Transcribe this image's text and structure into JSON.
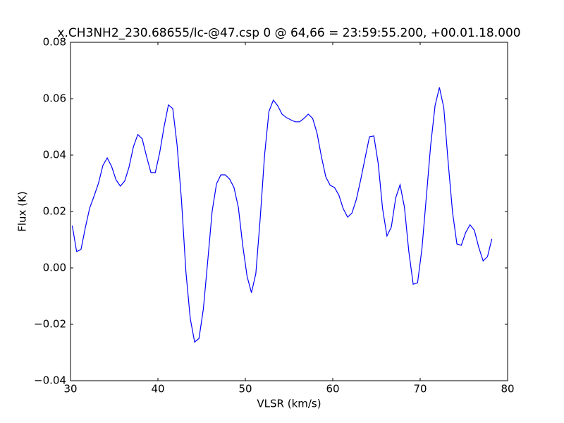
{
  "chart_data": {
    "type": "line",
    "title": "x.CH3NH2_230.68655/lc-@47.csp 0 @ 64,66 = 23:59:55.200, +00.01.18.000",
    "x_label": "VLSR (km/s)",
    "y_label": "Flux (K)",
    "x": [
      30.2,
      30.7,
      31.2,
      31.7,
      32.2,
      32.7,
      33.2,
      33.7,
      34.2,
      34.7,
      35.2,
      35.7,
      36.2,
      36.7,
      37.2,
      37.7,
      38.2,
      38.7,
      39.2,
      39.7,
      40.2,
      40.7,
      41.2,
      41.7,
      42.2,
      42.7,
      43.2,
      43.7,
      44.2,
      44.7,
      45.2,
      45.7,
      46.2,
      46.7,
      47.2,
      47.7,
      48.2,
      48.7,
      49.2,
      49.7,
      50.2,
      50.7,
      51.2,
      51.7,
      52.2,
      52.7,
      53.2,
      53.7,
      54.2,
      54.7,
      55.2,
      55.7,
      56.2,
      56.7,
      57.2,
      57.7,
      58.2,
      58.7,
      59.2,
      59.7,
      60.2,
      60.7,
      61.2,
      61.7,
      62.2,
      62.7,
      63.2,
      63.7,
      64.2,
      64.7,
      65.2,
      65.7,
      66.2,
      66.7,
      67.2,
      67.7,
      68.2,
      68.7,
      69.2,
      69.7,
      70.2,
      70.7,
      71.2,
      71.7,
      72.2,
      72.7,
      73.2,
      73.7,
      74.2,
      74.7,
      75.2,
      75.7,
      76.2,
      76.7,
      77.2,
      77.7,
      78.2
    ],
    "series": [
      {
        "color": "#0000ff",
        "values": [
          0.015,
          0.0058,
          0.0065,
          0.0143,
          0.0213,
          0.0255,
          0.03,
          0.0363,
          0.039,
          0.036,
          0.0313,
          0.029,
          0.0308,
          0.0358,
          0.043,
          0.0473,
          0.0458,
          0.0395,
          0.0338,
          0.0338,
          0.0408,
          0.05,
          0.0578,
          0.0565,
          0.0433,
          0.0238,
          -0.0013,
          -0.018,
          -0.0263,
          -0.025,
          -0.0145,
          0.0025,
          0.02,
          0.0298,
          0.033,
          0.033,
          0.0315,
          0.0285,
          0.0215,
          0.008,
          -0.003,
          -0.0088,
          -0.002,
          0.0175,
          0.04,
          0.0555,
          0.0595,
          0.0575,
          0.0545,
          0.0533,
          0.0525,
          0.0518,
          0.0518,
          0.053,
          0.0545,
          0.053,
          0.0478,
          0.0395,
          0.0323,
          0.0293,
          0.0285,
          0.0258,
          0.021,
          0.018,
          0.0195,
          0.0243,
          0.0313,
          0.039,
          0.0465,
          0.0468,
          0.037,
          0.021,
          0.0113,
          0.0145,
          0.0248,
          0.0295,
          0.0215,
          0.0058,
          -0.0058,
          -0.0053,
          0.0068,
          0.025,
          0.0435,
          0.0575,
          0.064,
          0.0568,
          0.0375,
          0.0198,
          0.0085,
          0.008,
          0.0125,
          0.0153,
          0.0133,
          0.0073,
          0.0025,
          0.004,
          0.0103
        ]
      }
    ],
    "xlim": [
      30,
      80
    ],
    "xticks": [
      30,
      40,
      50,
      60,
      70,
      80
    ],
    "ylim": [
      -0.04,
      0.08
    ],
    "yticks": [
      {
        "value": -0.04,
        "label": "−0.04"
      },
      {
        "value": -0.02,
        "label": "−0.02"
      },
      {
        "value": 0,
        "label": "0.00"
      },
      0.02,
      0.04,
      0.06,
      0.08
    ]
  }
}
